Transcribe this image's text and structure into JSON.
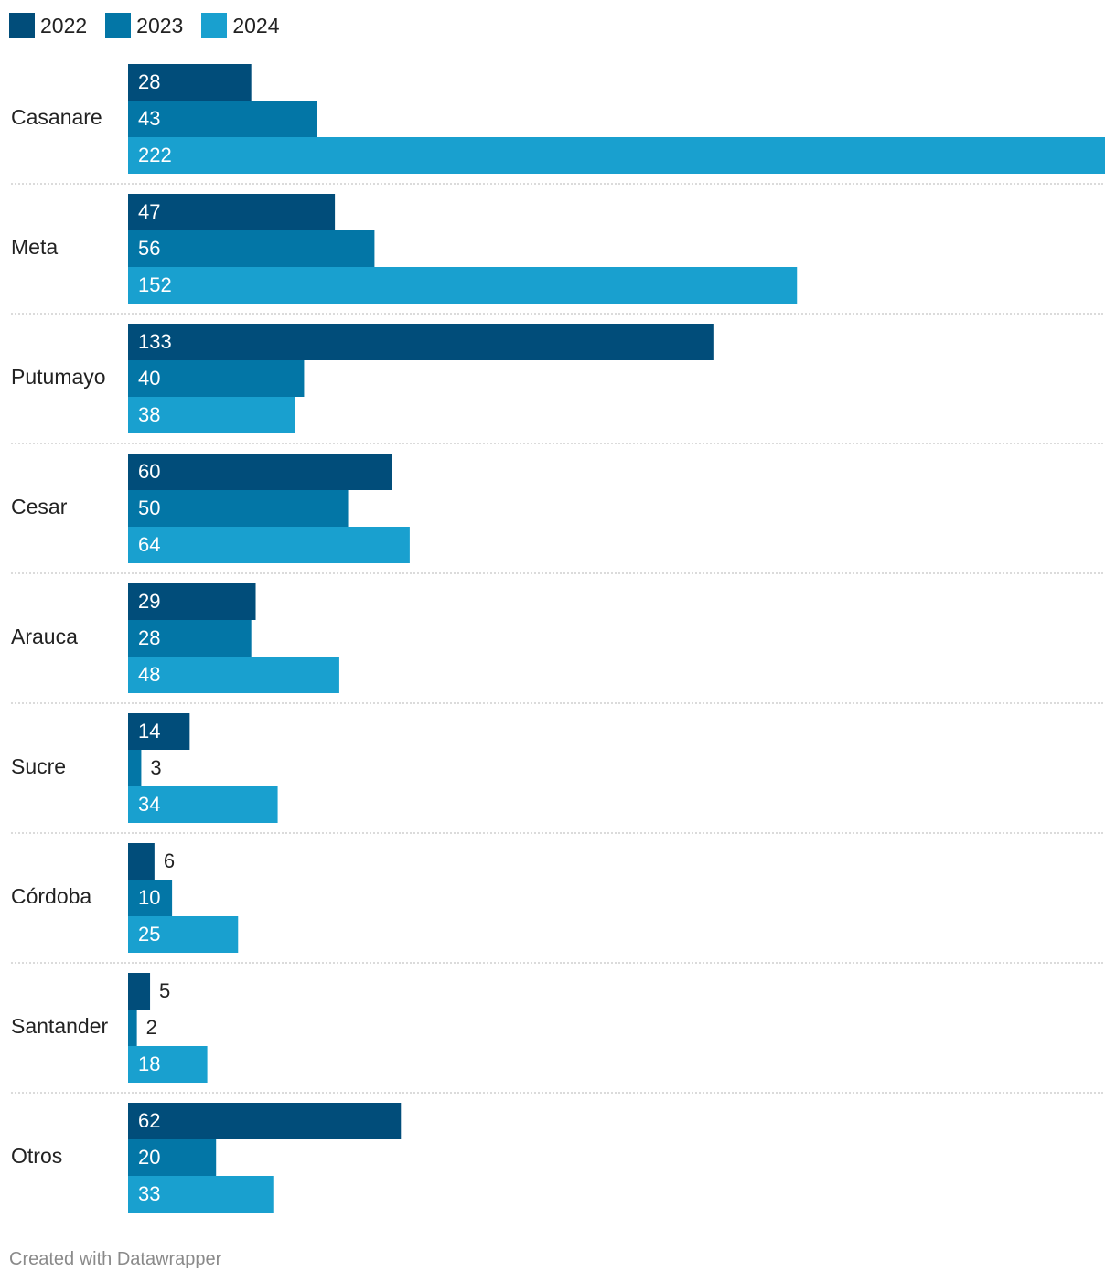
{
  "chart_data": {
    "type": "bar",
    "orientation": "horizontal",
    "categories": [
      "Casanare",
      "Meta",
      "Putumayo",
      "Cesar",
      "Arauca",
      "Sucre",
      "Córdoba",
      "Santander",
      "Otros"
    ],
    "series": [
      {
        "name": "2022",
        "color": "#014d7a",
        "values": [
          28,
          47,
          133,
          60,
          29,
          14,
          6,
          5,
          62
        ]
      },
      {
        "name": "2023",
        "color": "#0376a6",
        "values": [
          43,
          56,
          40,
          50,
          28,
          3,
          10,
          2,
          20
        ]
      },
      {
        "name": "2024",
        "color": "#19a0cf",
        "values": [
          222,
          152,
          38,
          64,
          48,
          34,
          25,
          18,
          33
        ]
      }
    ],
    "xlim": [
      0,
      222
    ],
    "legend_position": "top-left",
    "grid": false
  },
  "footer": {
    "credit": "Created with Datawrapper"
  }
}
